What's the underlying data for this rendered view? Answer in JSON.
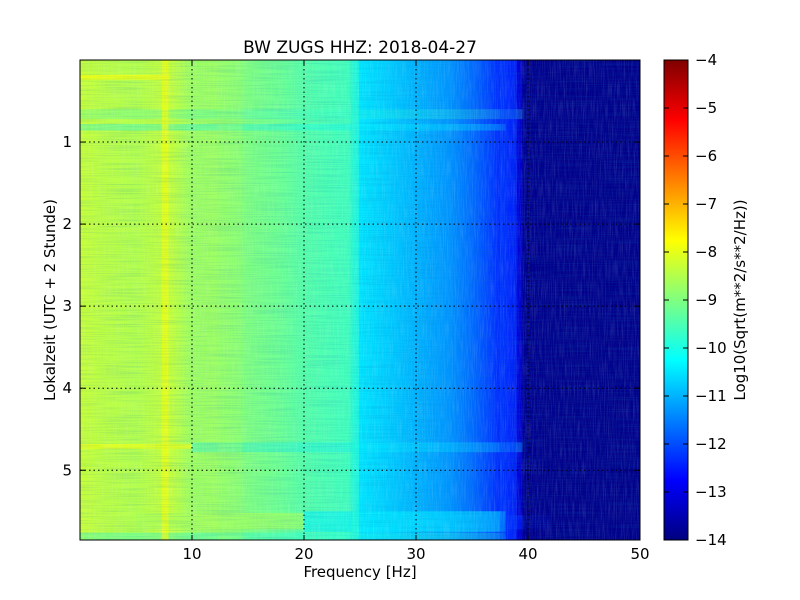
{
  "chart_data": {
    "type": "heatmap",
    "title": "BW ZUGS HHZ: 2018-04-27",
    "xlabel": "Frequency [Hz]",
    "ylabel": "Lokalzeit (UTC + 2 Stunde)",
    "xlim": [
      0,
      50
    ],
    "ylim": [
      5.85,
      0
    ],
    "x_ticks": [
      10,
      20,
      30,
      40,
      50
    ],
    "y_ticks": [
      1,
      2,
      3,
      4,
      5
    ],
    "grid": true,
    "colormap": "jet",
    "colorbar": {
      "label": "Log10(Sqrt(m**2/s**2/Hz))",
      "range": [
        -14,
        -4
      ],
      "ticks": [
        -4,
        -5,
        -6,
        -7,
        -8,
        -9,
        -10,
        -11,
        -12,
        -13,
        -14
      ]
    },
    "spectrum_profile": {
      "frequency_hz": [
        0,
        2,
        5,
        8,
        10,
        12,
        15,
        18,
        20,
        24,
        25,
        28,
        30,
        33,
        35,
        37,
        38.5,
        40,
        42,
        45,
        50
      ],
      "log10_amplitude": [
        -8.3,
        -8.4,
        -8.5,
        -8.3,
        -8.7,
        -8.7,
        -9.0,
        -9.2,
        -9.4,
        -9.6,
        -10.5,
        -10.8,
        -11.0,
        -11.3,
        -11.7,
        -12.2,
        -12.8,
        -13.6,
        -13.8,
        -13.9,
        -13.9
      ]
    },
    "features": [
      "strong horizontal band near 5.55-5.75 h",
      "bright horizontal lines near 0.2 h and 4.7 h",
      "vertical line near 7.5 Hz",
      "sharp drop in amplitude near 38-40 Hz"
    ]
  }
}
